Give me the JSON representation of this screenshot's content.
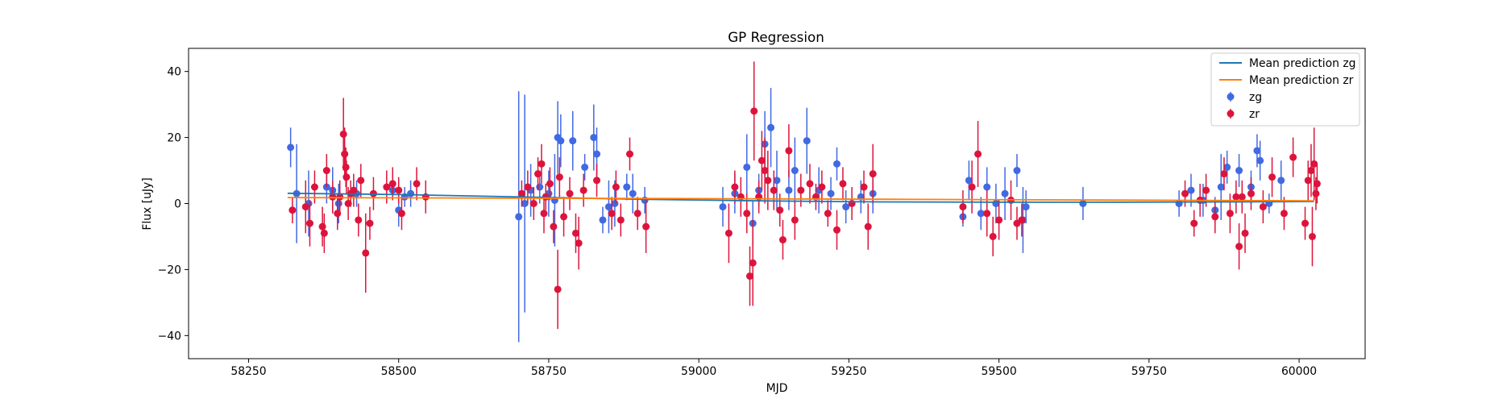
{
  "chart_data": {
    "type": "scatter",
    "title": "GP Regression",
    "xlabel": "MJD",
    "ylabel": "Flux [uJy]",
    "xlim": [
      58150,
      60110
    ],
    "ylim": [
      -47,
      47
    ],
    "xticks": [
      58250,
      58500,
      58750,
      59000,
      59250,
      59500,
      59750,
      60000
    ],
    "yticks": [
      -40,
      -20,
      0,
      20,
      40
    ],
    "grid": false,
    "legend_position": "top-right",
    "colors": {
      "zg_line": "#1f77b4",
      "zr_line": "#ff7f0e",
      "zg": "#4169e1",
      "zr": "#dc143c"
    },
    "series": [
      {
        "name": "Mean prediction zg",
        "kind": "line",
        "points": [
          [
            58315,
            3.1
          ],
          [
            58500,
            2.7
          ],
          [
            58700,
            2.0
          ],
          [
            58900,
            1.3
          ],
          [
            59100,
            0.8
          ],
          [
            59300,
            0.5
          ],
          [
            59500,
            0.4
          ],
          [
            59700,
            0.4
          ],
          [
            59900,
            0.5
          ],
          [
            60025,
            0.6
          ]
        ]
      },
      {
        "name": "Mean prediction zr",
        "kind": "line",
        "points": [
          [
            58315,
            1.8
          ],
          [
            58700,
            1.6
          ],
          [
            59000,
            1.5
          ],
          [
            59300,
            1.3
          ],
          [
            59600,
            1.1
          ],
          [
            59900,
            0.9
          ],
          [
            60025,
            0.8
          ]
        ]
      },
      {
        "name": "zg",
        "kind": "errorbar",
        "points": [
          [
            58320,
            17,
            6
          ],
          [
            58330,
            3,
            15
          ],
          [
            58350,
            0,
            10
          ],
          [
            58380,
            5,
            5
          ],
          [
            58390,
            4,
            7
          ],
          [
            58400,
            0,
            6
          ],
          [
            58430,
            3,
            4
          ],
          [
            58490,
            4,
            3
          ],
          [
            58500,
            -2,
            5
          ],
          [
            58510,
            2,
            3
          ],
          [
            58520,
            3,
            4
          ],
          [
            58700,
            -4,
            38
          ],
          [
            58710,
            0,
            33
          ],
          [
            58720,
            4,
            8
          ],
          [
            58735,
            5,
            5
          ],
          [
            58750,
            3,
            7
          ],
          [
            58760,
            1,
            14
          ],
          [
            58765,
            20,
            11
          ],
          [
            58770,
            19,
            8
          ],
          [
            58790,
            19,
            9
          ],
          [
            58810,
            11,
            4
          ],
          [
            58825,
            20,
            10
          ],
          [
            58830,
            15,
            8
          ],
          [
            58840,
            -5,
            4
          ],
          [
            58850,
            -1,
            8
          ],
          [
            58860,
            0,
            7
          ],
          [
            58880,
            5,
            4
          ],
          [
            58890,
            3,
            6
          ],
          [
            58910,
            1,
            4
          ],
          [
            59040,
            -1,
            6
          ],
          [
            59060,
            3,
            6
          ],
          [
            59080,
            11,
            10
          ],
          [
            59090,
            -6,
            7
          ],
          [
            59100,
            4,
            5
          ],
          [
            59110,
            18,
            10
          ],
          [
            59120,
            23,
            12
          ],
          [
            59130,
            7,
            9
          ],
          [
            59150,
            4,
            6
          ],
          [
            59160,
            10,
            10
          ],
          [
            59180,
            19,
            10
          ],
          [
            59200,
            4,
            7
          ],
          [
            59220,
            3,
            5
          ],
          [
            59230,
            12,
            5
          ],
          [
            59245,
            -1,
            5
          ],
          [
            59270,
            2,
            5
          ],
          [
            59290,
            3,
            6
          ],
          [
            59440,
            -4,
            3
          ],
          [
            59450,
            7,
            6
          ],
          [
            59470,
            -3,
            5
          ],
          [
            59480,
            5,
            6
          ],
          [
            59495,
            0,
            6
          ],
          [
            59510,
            3,
            8
          ],
          [
            59530,
            10,
            5
          ],
          [
            59540,
            -5,
            10
          ],
          [
            59545,
            -1,
            5
          ],
          [
            59640,
            0,
            5
          ],
          [
            59800,
            0,
            4
          ],
          [
            59820,
            4,
            5
          ],
          [
            59840,
            1,
            5
          ],
          [
            59860,
            -2,
            4
          ],
          [
            59870,
            5,
            10
          ],
          [
            59880,
            11,
            5
          ],
          [
            59900,
            10,
            5
          ],
          [
            59920,
            5,
            5
          ],
          [
            59930,
            16,
            5
          ],
          [
            59935,
            13,
            6
          ],
          [
            59950,
            0,
            3
          ],
          [
            59970,
            7,
            6
          ]
        ]
      },
      {
        "name": "zr",
        "kind": "errorbar",
        "points": [
          [
            58323,
            -2,
            4
          ],
          [
            58345,
            -1,
            8
          ],
          [
            58352,
            -6,
            7
          ],
          [
            58360,
            5,
            5
          ],
          [
            58373,
            -7,
            6
          ],
          [
            58376,
            -9,
            6
          ],
          [
            58380,
            10,
            5
          ],
          [
            58390,
            2,
            5
          ],
          [
            58398,
            -3,
            5
          ],
          [
            58402,
            2,
            5
          ],
          [
            58408,
            21,
            11
          ],
          [
            58410,
            15,
            8
          ],
          [
            58412,
            11,
            6
          ],
          [
            58413,
            8,
            5
          ],
          [
            58416,
            0,
            5
          ],
          [
            58420,
            3,
            4
          ],
          [
            58425,
            4,
            5
          ],
          [
            58433,
            -5,
            5
          ],
          [
            58437,
            7,
            5
          ],
          [
            58445,
            -15,
            12
          ],
          [
            58452,
            -6,
            5
          ],
          [
            58458,
            3,
            5
          ],
          [
            58480,
            5,
            5
          ],
          [
            58490,
            6,
            5
          ],
          [
            58500,
            4,
            4
          ],
          [
            58505,
            -3,
            5
          ],
          [
            58530,
            6,
            5
          ],
          [
            58545,
            2,
            5
          ],
          [
            58705,
            3,
            4
          ],
          [
            58715,
            5,
            5
          ],
          [
            58725,
            0,
            5
          ],
          [
            58732,
            9,
            5
          ],
          [
            58738,
            12,
            6
          ],
          [
            58742,
            -3,
            6
          ],
          [
            58745,
            2,
            4
          ],
          [
            58752,
            6,
            5
          ],
          [
            58758,
            -7,
            5
          ],
          [
            58765,
            -26,
            12
          ],
          [
            58768,
            8,
            6
          ],
          [
            58775,
            -4,
            6
          ],
          [
            58785,
            3,
            5
          ],
          [
            58795,
            -9,
            6
          ],
          [
            58800,
            -12,
            8
          ],
          [
            58808,
            4,
            5
          ],
          [
            58830,
            7,
            5
          ],
          [
            58855,
            -3,
            5
          ],
          [
            58862,
            5,
            5
          ],
          [
            58870,
            -5,
            5
          ],
          [
            58885,
            15,
            5
          ],
          [
            58898,
            -3,
            5
          ],
          [
            58912,
            -7,
            8
          ],
          [
            59050,
            -9,
            9
          ],
          [
            59060,
            5,
            5
          ],
          [
            59070,
            2,
            6
          ],
          [
            59080,
            -3,
            6
          ],
          [
            59085,
            -22,
            9
          ],
          [
            59090,
            -18,
            13
          ],
          [
            59092,
            28,
            15
          ],
          [
            59100,
            2,
            5
          ],
          [
            59105,
            13,
            9
          ],
          [
            59110,
            10,
            10
          ],
          [
            59115,
            7,
            9
          ],
          [
            59125,
            4,
            6
          ],
          [
            59135,
            -2,
            5
          ],
          [
            59140,
            -11,
            6
          ],
          [
            59150,
            16,
            8
          ],
          [
            59160,
            -5,
            6
          ],
          [
            59170,
            4,
            5
          ],
          [
            59185,
            6,
            6
          ],
          [
            59195,
            2,
            4
          ],
          [
            59205,
            5,
            5
          ],
          [
            59215,
            -3,
            4
          ],
          [
            59230,
            -8,
            6
          ],
          [
            59240,
            6,
            5
          ],
          [
            59255,
            0,
            5
          ],
          [
            59275,
            5,
            5
          ],
          [
            59282,
            -7,
            7
          ],
          [
            59290,
            9,
            9
          ],
          [
            59440,
            -1,
            5
          ],
          [
            59455,
            5,
            8
          ],
          [
            59465,
            15,
            10
          ],
          [
            59480,
            -3,
            7
          ],
          [
            59490,
            -10,
            6
          ],
          [
            59500,
            -5,
            6
          ],
          [
            59520,
            1,
            6
          ],
          [
            59530,
            -6,
            5
          ],
          [
            59538,
            -5,
            5
          ],
          [
            59810,
            3,
            4
          ],
          [
            59825,
            -6,
            4
          ],
          [
            59835,
            1,
            5
          ],
          [
            59845,
            4,
            5
          ],
          [
            59860,
            -4,
            5
          ],
          [
            59875,
            9,
            5
          ],
          [
            59885,
            -3,
            6
          ],
          [
            59895,
            2,
            5
          ],
          [
            59900,
            -13,
            7
          ],
          [
            59905,
            2,
            5
          ],
          [
            59910,
            -9,
            6
          ],
          [
            59920,
            3,
            5
          ],
          [
            59940,
            -1,
            5
          ],
          [
            59955,
            8,
            6
          ],
          [
            59975,
            -3,
            5
          ],
          [
            59990,
            14,
            6
          ],
          [
            60010,
            -6,
            5
          ],
          [
            60015,
            7,
            6
          ],
          [
            60020,
            10,
            8
          ],
          [
            60022,
            -10,
            9
          ],
          [
            60025,
            12,
            11
          ],
          [
            60028,
            3,
            5
          ],
          [
            60030,
            6,
            6
          ]
        ]
      }
    ]
  }
}
